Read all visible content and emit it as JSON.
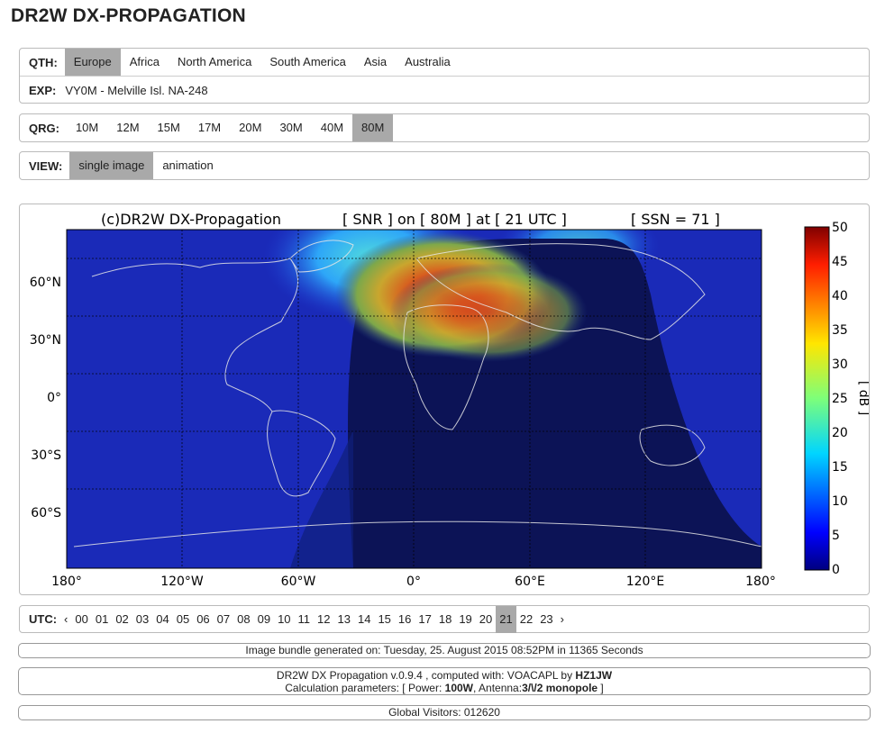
{
  "page": {
    "title": "DR2W DX-PROPAGATION"
  },
  "qth": {
    "label": "QTH:",
    "options": [
      "Europe",
      "Africa",
      "North America",
      "South America",
      "Asia",
      "Australia"
    ],
    "selected": "Europe"
  },
  "exp": {
    "label": "EXP:",
    "value": "VY0M - Melville Isl. NA-248"
  },
  "qrg": {
    "label": "QRG:",
    "options": [
      "10M",
      "12M",
      "15M",
      "17M",
      "20M",
      "30M",
      "40M",
      "80M"
    ],
    "selected": "80M"
  },
  "view": {
    "label": "VIEW:",
    "options": [
      "single image",
      "animation"
    ],
    "selected": "single image"
  },
  "map": {
    "title_left": "(c)DR2W DX-Propagation",
    "title_mid": "[ SNR ] on [ 80M ] at [ 21 UTC ]",
    "title_right": "[ SSN = 71 ]",
    "lat_labels": [
      "60°N",
      "30°N",
      "0°",
      "30°S",
      "60°S"
    ],
    "lon_labels": [
      "180°",
      "120°W",
      "60°W",
      "0°",
      "60°E",
      "120°E",
      "180°"
    ],
    "colorbar": {
      "label": "[ dB ]",
      "ticks": [
        "50",
        "45",
        "40",
        "35",
        "30",
        "25",
        "20",
        "15",
        "10",
        "5",
        "0"
      ]
    }
  },
  "utc": {
    "label": "UTC:",
    "prev": "‹",
    "next": "›",
    "hours": [
      "00",
      "01",
      "02",
      "03",
      "04",
      "05",
      "06",
      "07",
      "08",
      "09",
      "10",
      "11",
      "12",
      "13",
      "14",
      "15",
      "16",
      "17",
      "18",
      "19",
      "20",
      "21",
      "22",
      "23"
    ],
    "selected": "21"
  },
  "footer": {
    "generated": "Image bundle generated on: Tuesday, 25. August 2015 08:52PM in 11365 Seconds",
    "version_prefix": "DR2W DX Propagation v.0.9.4 , computed with: VOACAPL by ",
    "author": "HZ1JW",
    "params_prefix": "Calculation parameters: [ Power: ",
    "power": "100W",
    "params_mid": ", Antenna:",
    "antenna": "3/\\/2 monopole",
    "params_suffix": " ]",
    "visitors": "Global Visitors: 012620"
  }
}
